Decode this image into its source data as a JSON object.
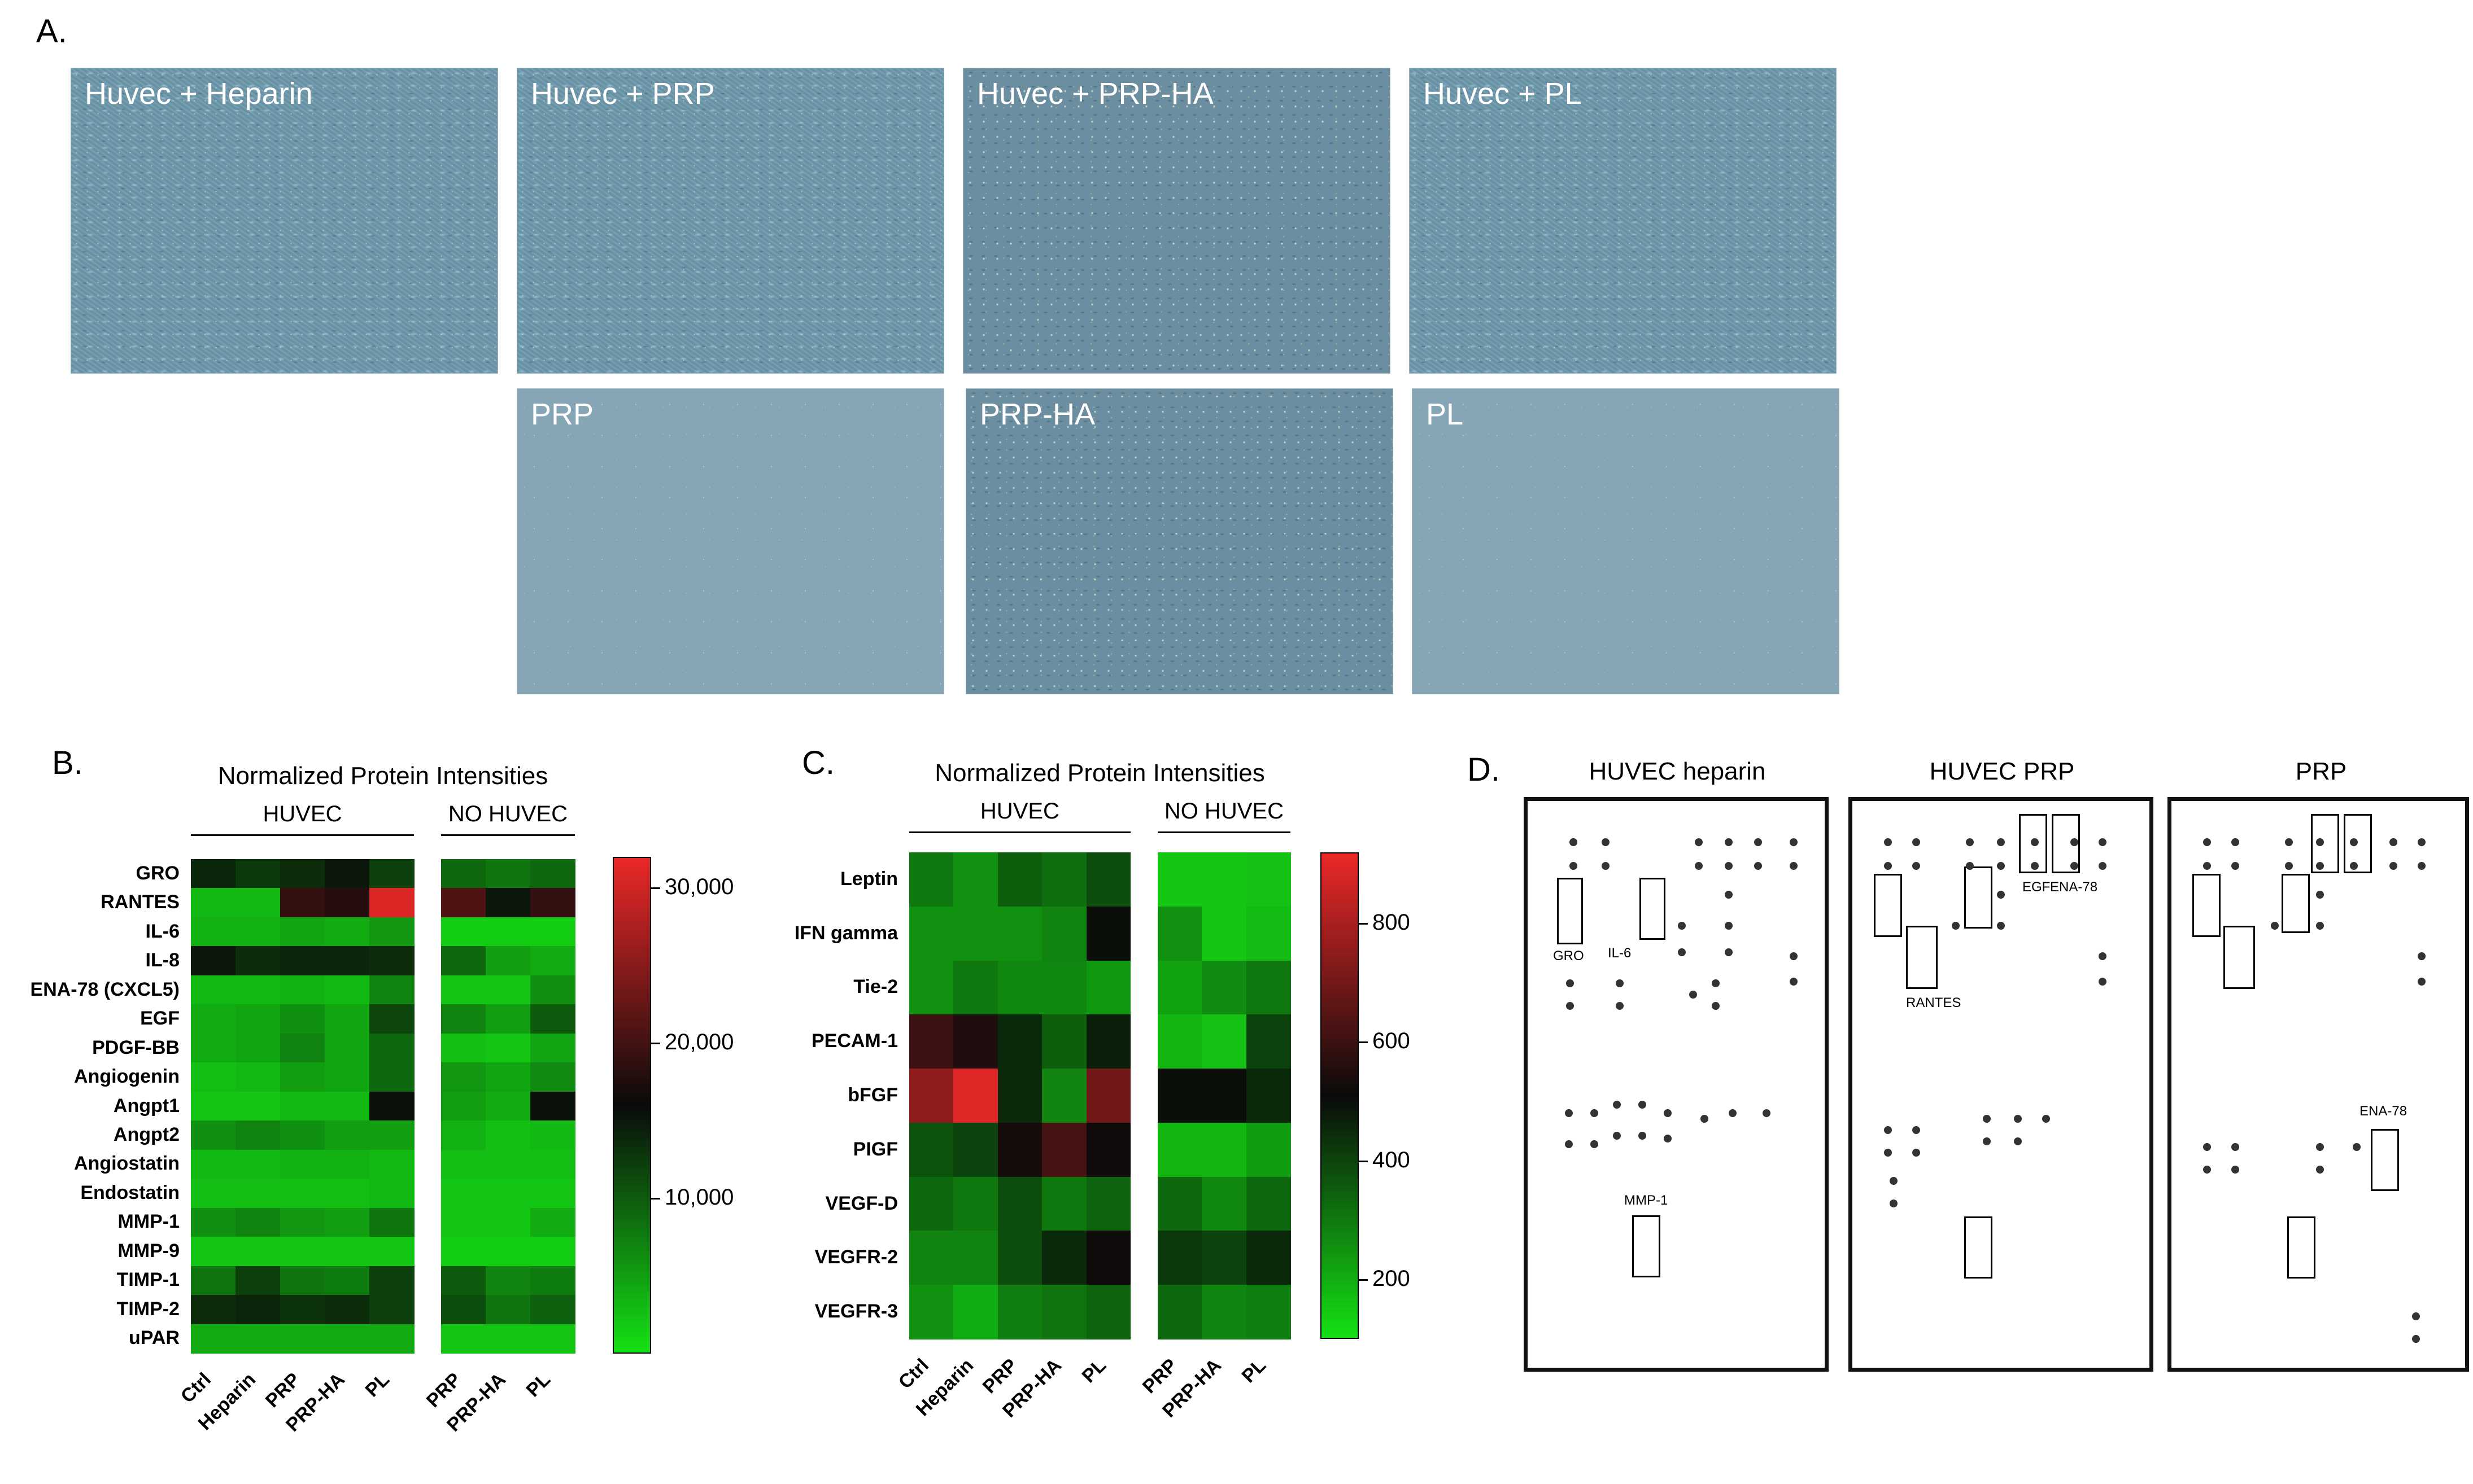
{
  "panel_letters": {
    "a": "A.",
    "b": "B.",
    "c": "C.",
    "d": "D."
  },
  "micrographs": {
    "top": [
      "Huvec + Heparin",
      "Huvec + PRP",
      "Huvec + PRP-HA",
      "Huvec + PL"
    ],
    "bottom": [
      "PRP",
      "PRP-HA",
      "PL"
    ]
  },
  "chart_data": [
    {
      "type": "heatmap",
      "title": "Normalized Protein Intensities",
      "group_labels": [
        "HUVEC",
        "NO HUVEC"
      ],
      "columns": [
        "Ctrl",
        "Heparin",
        "PRP",
        "PRP-HA",
        "PL",
        "PRP",
        "PRP-HA",
        "PL"
      ],
      "rows": [
        "GRO",
        "RANTES",
        "IL-6",
        "IL-8",
        "ENA-78 (CXCL5)",
        "EGF",
        "PDGF-BB",
        "Angiogenin",
        "Angpt1",
        "Angpt2",
        "Angiostatin",
        "Endostatin",
        "MMP-1",
        "MMP-9",
        "TIMP-1",
        "TIMP-2",
        "uPAR"
      ],
      "values": [
        [
          14000,
          12500,
          13500,
          15000,
          12000,
          9000,
          8000,
          9000
        ],
        [
          3000,
          3000,
          19000,
          18000,
          31000,
          21000,
          15000,
          19000
        ],
        [
          3500,
          3500,
          4500,
          4000,
          5500,
          1500,
          1500,
          1500
        ],
        [
          15000,
          13500,
          14000,
          14000,
          13500,
          9000,
          5000,
          4000
        ],
        [
          3000,
          3000,
          3500,
          3000,
          7000,
          2000,
          2000,
          6000
        ],
        [
          4000,
          4500,
          6000,
          4500,
          11500,
          7000,
          5000,
          10000
        ],
        [
          4000,
          4500,
          7000,
          4500,
          9000,
          2500,
          2000,
          4500
        ],
        [
          2500,
          3000,
          5000,
          4500,
          9000,
          5500,
          4500,
          6500
        ],
        [
          2000,
          2000,
          3000,
          3000,
          15500,
          5000,
          4000,
          15500
        ],
        [
          6000,
          7000,
          6000,
          5000,
          5000,
          3500,
          2500,
          3000
        ],
        [
          3000,
          3000,
          3500,
          3500,
          3000,
          2500,
          2500,
          2500
        ],
        [
          2500,
          2500,
          2500,
          2500,
          3000,
          2000,
          2000,
          2000
        ],
        [
          6000,
          7000,
          5500,
          5000,
          8000,
          2000,
          2000,
          4000
        ],
        [
          2000,
          2000,
          2000,
          2000,
          2000,
          1500,
          1500,
          1500
        ],
        [
          8000,
          12000,
          8000,
          7500,
          12000,
          10000,
          7000,
          7500
        ],
        [
          13500,
          14000,
          13000,
          13500,
          12000,
          11000,
          8000,
          9500
        ],
        [
          4000,
          4000,
          4000,
          4000,
          4000,
          2000,
          2000,
          2000
        ]
      ],
      "colorbar_ticks": [
        10000,
        20000,
        30000
      ],
      "colorbar_tick_labels": [
        "10,000",
        "20,000",
        "30,000"
      ],
      "zlim": [
        0,
        32000
      ]
    },
    {
      "type": "heatmap",
      "title": "Normalized Protein Intensities",
      "group_labels": [
        "HUVEC",
        "NO HUVEC"
      ],
      "columns": [
        "Ctrl",
        "Heparin",
        "PRP",
        "PRP-HA",
        "PL",
        "PRP",
        "PRP-HA",
        "PL"
      ],
      "rows": [
        "Leptin",
        "IFN gamma",
        "Tie-2",
        "PECAM-1",
        "bFGF",
        "PIGF",
        "VEGF-D",
        "VEGFR-2",
        "VEGFR-3"
      ],
      "values": [
        [
          300,
          250,
          350,
          320,
          380,
          150,
          150,
          160
        ],
        [
          250,
          250,
          250,
          280,
          500,
          250,
          150,
          170
        ],
        [
          250,
          300,
          270,
          270,
          240,
          220,
          260,
          300
        ],
        [
          600,
          550,
          450,
          350,
          470,
          180,
          160,
          400
        ],
        [
          750,
          900,
          450,
          280,
          700,
          500,
          500,
          450
        ],
        [
          370,
          400,
          530,
          620,
          520,
          180,
          180,
          230
        ],
        [
          330,
          300,
          380,
          300,
          340,
          330,
          270,
          330
        ],
        [
          280,
          280,
          380,
          450,
          520,
          420,
          400,
          450
        ],
        [
          250,
          200,
          290,
          310,
          340,
          330,
          280,
          290
        ]
      ],
      "colorbar_ticks": [
        200,
        400,
        600,
        800
      ],
      "colorbar_tick_labels": [
        "200",
        "400",
        "600",
        "800"
      ],
      "zlim": [
        100,
        920
      ]
    }
  ],
  "blots": {
    "titles": [
      "HUVEC heparin",
      "HUVEC PRP",
      "PRP"
    ],
    "labels": {
      "heparin": [
        "GRO",
        "IL-6",
        "MMP-1"
      ],
      "prp_huvec": [
        "EGF",
        "ENA-78",
        "RANTES"
      ],
      "prp": [
        "ENA-78"
      ]
    }
  }
}
